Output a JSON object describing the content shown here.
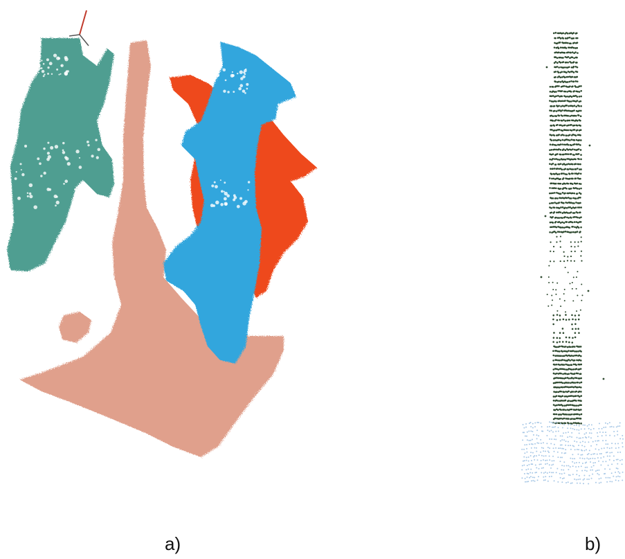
{
  "panels": [
    {
      "caption": "a)",
      "segments": [
        {
          "name": "teal-segment",
          "color": "#4f9e91"
        },
        {
          "name": "salmon-segment",
          "color": "#e0a08c"
        },
        {
          "name": "red-segment",
          "color": "#ee4a1c"
        },
        {
          "name": "blue-segment",
          "color": "#31a6dd"
        }
      ],
      "axis_colors": [
        "#c0392b",
        "#555555"
      ]
    },
    {
      "caption": "b)",
      "segments": [
        {
          "name": "pole-points",
          "color": "#2f4a30"
        },
        {
          "name": "ground-points",
          "color": "#a8c8e6"
        }
      ]
    }
  ]
}
